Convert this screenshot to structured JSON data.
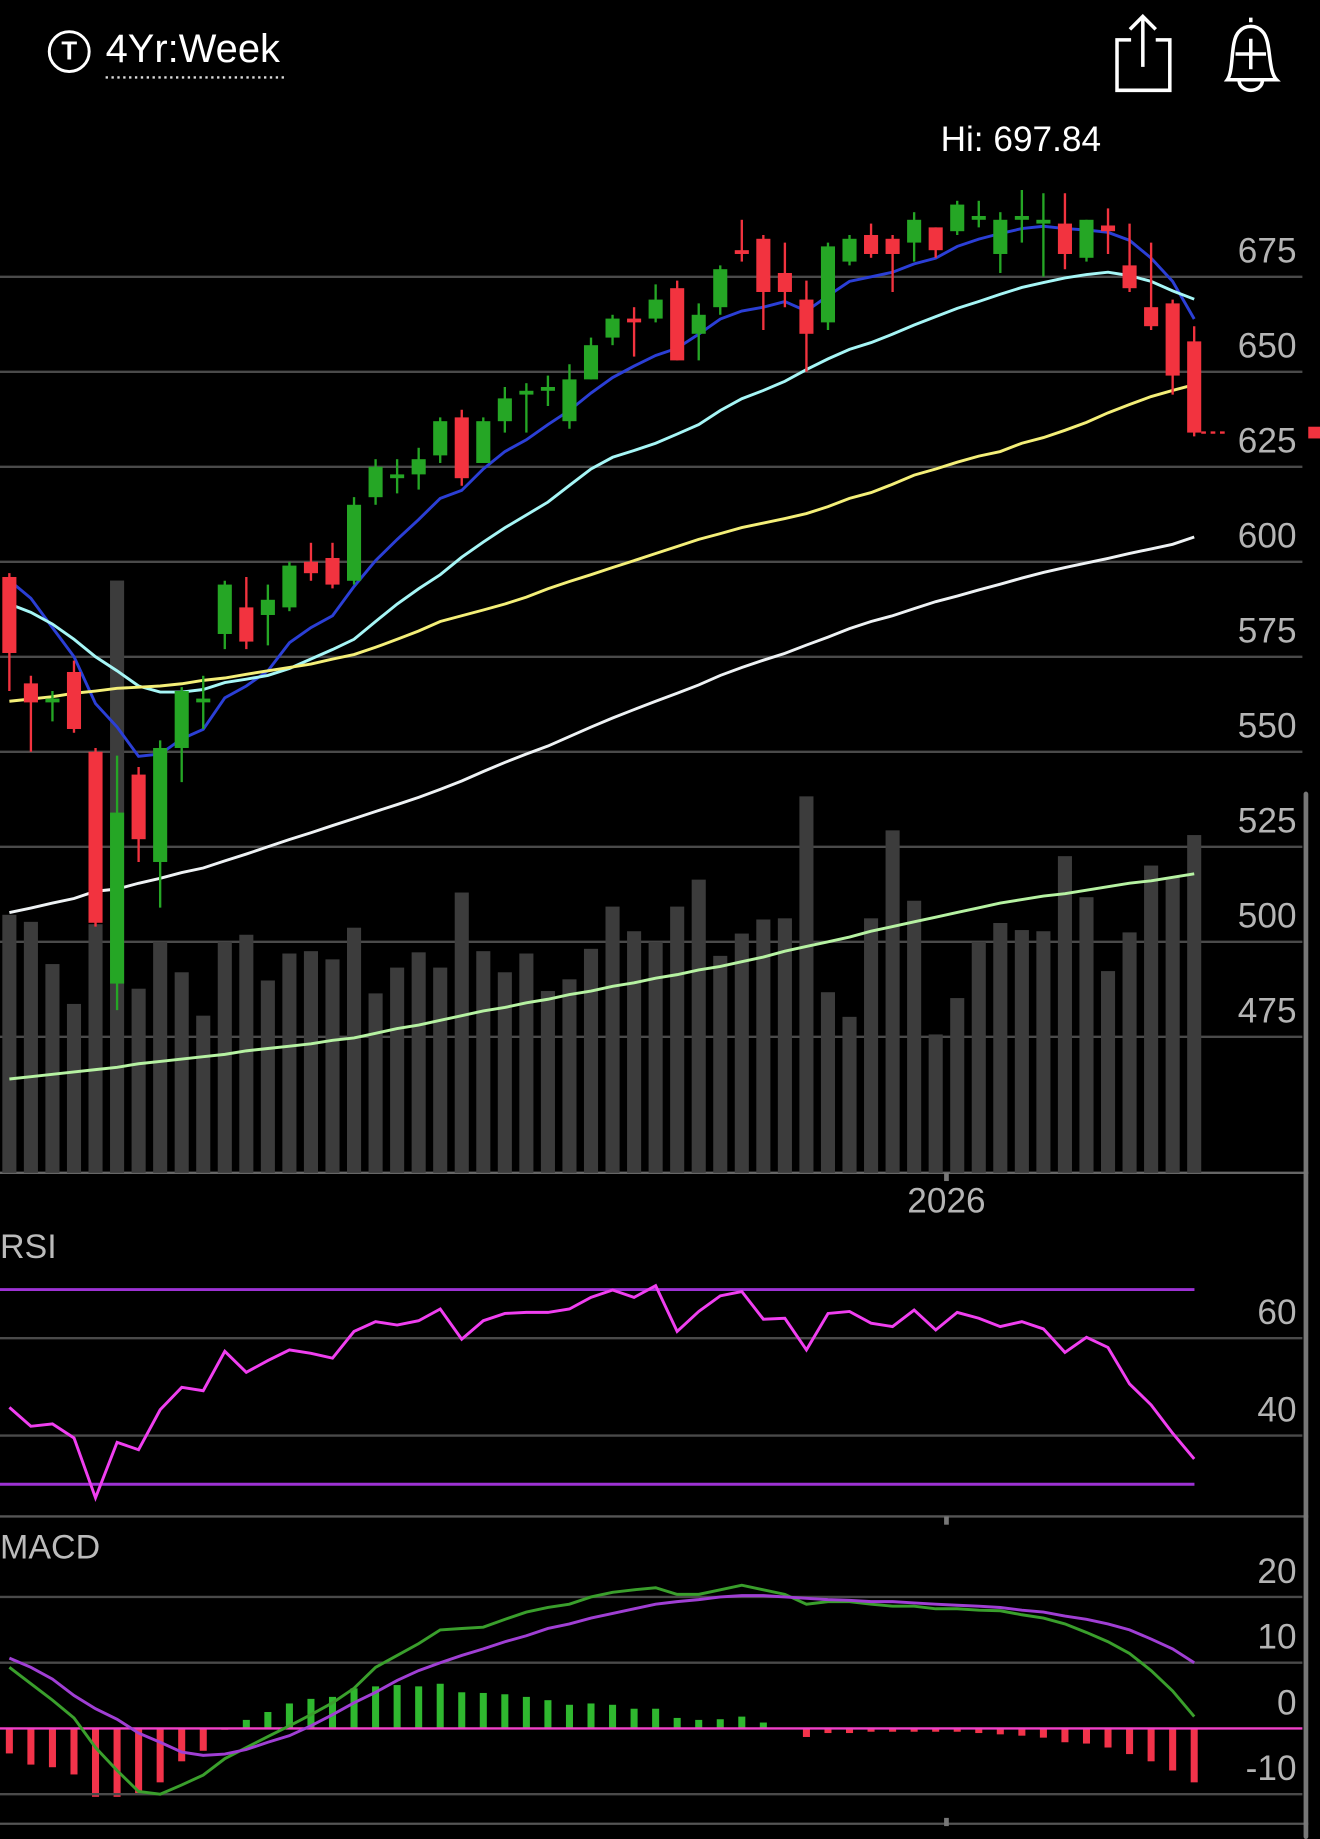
{
  "header": {
    "icon_letter": "T",
    "title": "4Yr:Week"
  },
  "chart_data": [
    {
      "type": "candlestick",
      "annotation": "Hi: 697.84",
      "categories": [
        null,
        null,
        null,
        null,
        null,
        null,
        null,
        null,
        null,
        null,
        null,
        null,
        null,
        null,
        null,
        null,
        null,
        null,
        null,
        null,
        null,
        null,
        null,
        null,
        null,
        null,
        null,
        null,
        null,
        null,
        null,
        null,
        null,
        null,
        null,
        null,
        null,
        null,
        null,
        null,
        null,
        null,
        null,
        null,
        null,
        null,
        null,
        null,
        null,
        null,
        null,
        null,
        null,
        null,
        null,
        null
      ],
      "open": [
        596,
        568,
        563,
        571,
        550,
        489,
        544,
        521,
        551,
        563,
        581,
        588,
        586,
        588,
        600,
        601,
        595,
        617,
        622,
        623,
        628,
        638,
        626,
        637,
        644,
        645,
        637,
        648,
        659,
        664,
        664,
        672,
        660,
        667,
        682,
        685,
        676,
        669,
        663,
        679,
        686,
        685,
        684,
        688,
        687,
        690,
        681,
        690,
        689,
        689,
        680,
        688.5,
        678,
        667,
        668,
        658
      ],
      "high": [
        597,
        570,
        566,
        574,
        551,
        549,
        546,
        553,
        567,
        570,
        595,
        596,
        594,
        600,
        605,
        605,
        617,
        627,
        627,
        630,
        638,
        640,
        638,
        646,
        647,
        649,
        652,
        659,
        665,
        667,
        673,
        674,
        668,
        678,
        690,
        686,
        684,
        674,
        684,
        686,
        689,
        686,
        692,
        688,
        695,
        695,
        692,
        697.84,
        697,
        697,
        690,
        693,
        689,
        684,
        669,
        662
      ],
      "low": [
        566,
        550,
        558,
        555,
        504,
        482,
        521,
        509,
        542,
        556,
        577,
        577,
        578,
        587,
        595,
        593,
        594,
        615,
        618,
        619,
        626,
        620,
        626,
        634,
        634,
        641,
        635,
        648,
        657,
        654,
        663,
        653,
        653,
        665,
        679,
        661,
        667,
        650,
        661,
        678,
        680,
        671,
        679,
        680,
        686,
        688,
        676,
        684,
        675,
        677,
        679,
        681,
        671,
        661,
        644,
        633
      ],
      "close": [
        576,
        563,
        564,
        556,
        505,
        534,
        527,
        551,
        566,
        564,
        594,
        579,
        590,
        599,
        597,
        594,
        615,
        625,
        623,
        627,
        637,
        622,
        637,
        643,
        645,
        646,
        648,
        657,
        664,
        663,
        669,
        653,
        665,
        677,
        681,
        671,
        671,
        660,
        683,
        685,
        681,
        681,
        690,
        682,
        694,
        691,
        690,
        691,
        690,
        681,
        690,
        687,
        672,
        662,
        649,
        634
      ],
      "colors": {
        "up": "#25a625",
        "down": "#f2333f"
      },
      "series": [
        {
          "color": "#2b3fd6",
          "values": [
            595.1,
            590.4,
            582.7,
            575,
            562.7,
            556.5,
            548.8,
            549.4,
            553.4,
            555.9,
            564.2,
            567.3,
            571.3,
            578.7,
            582.7,
            585.8,
            593.5,
            600.3,
            605.9,
            611.1,
            616.7,
            618.8,
            624.4,
            629,
            632.1,
            636.1,
            639.8,
            644.4,
            648.5,
            651.5,
            654.3,
            656.2,
            659.9,
            663.9,
            666,
            667,
            668.5,
            666,
            670,
            673.8,
            675,
            676.2,
            678.4,
            679.9,
            683,
            684.9,
            686.4,
            687.7,
            688.3,
            687.7,
            687.3,
            686.7,
            684.6,
            679.9,
            673.8,
            663.9
          ]
        },
        {
          "color": "#a6f6f6",
          "values": [
            588.9,
            586.7,
            583.6,
            579.6,
            575,
            571.3,
            567.3,
            565.7,
            565.7,
            566.4,
            568.2,
            569.1,
            570.1,
            571.9,
            574.4,
            576.9,
            579.6,
            584.3,
            588.9,
            592.9,
            596.6,
            601.2,
            605.2,
            608.95,
            612.3,
            615.7,
            620.1,
            624.4,
            627.5,
            629.3,
            631.2,
            633.6,
            636.1,
            639.8,
            642.9,
            645.1,
            647.5,
            650.6,
            653.4,
            655.9,
            657.7,
            659.9,
            662.3,
            664.5,
            666.7,
            668.5,
            670.4,
            672.2,
            673.5,
            674.7,
            675.6,
            676.2,
            675.3,
            673.8,
            671.3,
            669.1
          ]
        },
        {
          "color": "#f4ef78",
          "values": [
            563.3,
            563.9,
            564.5,
            565.4,
            566,
            566.7,
            567,
            567.3,
            567.9,
            568.8,
            569.4,
            570.4,
            571.3,
            572.2,
            573.1,
            574.4,
            575.6,
            577.5,
            579.6,
            581.8,
            584.3,
            585.8,
            587.3,
            588.9,
            590.7,
            592.9,
            594.8,
            596.6,
            598.5,
            600.3,
            602.2,
            604,
            605.9,
            607.4,
            609,
            610.2,
            611.4,
            612.7,
            614.5,
            616.7,
            618.2,
            620.4,
            622.8,
            624.4,
            626.2,
            627.8,
            629,
            631.2,
            632.7,
            634.6,
            636.7,
            639.2,
            641.4,
            643.5,
            645.1,
            646.6
          ]
        },
        {
          "color": "#eef2f4",
          "values": [
            507.7,
            508.9,
            510.2,
            511.4,
            513.3,
            513.9,
            515.4,
            516.7,
            518.2,
            519.4,
            521.3,
            523.1,
            525,
            526.9,
            528.7,
            530.6,
            532.4,
            534.3,
            536.1,
            538,
            540.1,
            542.3,
            544.8,
            547.2,
            549.4,
            551.5,
            554,
            556.5,
            558.9,
            561.1,
            563.3,
            565.4,
            567.6,
            570.1,
            572.2,
            574.1,
            575.9,
            578.1,
            580.2,
            582.4,
            584.3,
            585.8,
            587.7,
            589.5,
            591,
            592.6,
            594.1,
            595.7,
            597.2,
            598.5,
            599.7,
            600.9,
            602.2,
            603.4,
            604.6,
            606.5
          ]
        }
      ],
      "volume": {
        "color": "#3c3c3c",
        "ylim": [
          0,
          600
        ],
        "values": [
          220,
          214,
          178,
          144,
          212,
          505,
          157,
          197,
          171,
          134,
          197,
          203,
          164,
          187,
          189,
          182,
          209,
          153,
          175,
          188,
          175,
          239,
          189,
          171,
          187,
          155,
          165,
          191,
          227,
          206,
          197,
          227,
          250,
          185,
          204,
          216,
          217,
          321,
          154,
          133,
          217,
          292,
          232,
          118,
          149,
          197,
          213,
          207,
          206,
          270,
          235,
          172,
          205,
          262,
          252,
          288
        ],
        "average": {
          "color": "#b6f2a2",
          "values": [
            80,
            82,
            84,
            86,
            88,
            90,
            93,
            95,
            97,
            99,
            101,
            104,
            106,
            108,
            110,
            113,
            115,
            119,
            123,
            126,
            130,
            134,
            138,
            141,
            145,
            148,
            152,
            155,
            159,
            162,
            166,
            169,
            173,
            176,
            180,
            184,
            189,
            193,
            197,
            201,
            206,
            210,
            214,
            218,
            222,
            226,
            230,
            233,
            236,
            238,
            241,
            244,
            247,
            249,
            252,
            255
          ]
        }
      },
      "ylim": [
        440,
        705
      ],
      "yticks": [
        475,
        500,
        525,
        550,
        575,
        600,
        625,
        650,
        675
      ],
      "xticks": [
        {
          "value": 43.5,
          "label": "2026"
        }
      ],
      "grid": true
    },
    {
      "type": "line",
      "title": "RSI",
      "categories": [
        null,
        null,
        null,
        null,
        null,
        null,
        null,
        null,
        null,
        null,
        null,
        null,
        null,
        null,
        null,
        null,
        null,
        null,
        null,
        null,
        null,
        null,
        null,
        null,
        null,
        null,
        null,
        null,
        null,
        null,
        null,
        null,
        null,
        null,
        null,
        null,
        null,
        null,
        null,
        null,
        null,
        null,
        null,
        null,
        null,
        null,
        null,
        null,
        null,
        null,
        null,
        null,
        null,
        null,
        null,
        null
      ],
      "series": [
        {
          "color": "#f03ff0",
          "values": [
            45.8,
            41.9,
            42.4,
            39.5,
            27.2,
            38.6,
            37.1,
            45.3,
            49.9,
            49.2,
            57.3,
            53,
            55.4,
            57.6,
            56.9,
            55.9,
            61.4,
            63.4,
            62.7,
            63.6,
            66,
            59.8,
            63.6,
            65.1,
            65.3,
            65.3,
            66,
            68.4,
            69.9,
            68.4,
            70.8,
            61.4,
            65.5,
            68.7,
            69.6,
            63.9,
            64.1,
            57.6,
            65.1,
            65.5,
            63.1,
            62.4,
            65.8,
            61.7,
            65.3,
            64.1,
            62.4,
            63.4,
            61.9,
            57.1,
            60.2,
            58.1,
            50.6,
            46.3,
            40.5,
            35.2
          ]
        }
      ],
      "levels": [
        30,
        70
      ],
      "level_color": "#9d32d4",
      "ylim": [
        23.5,
        83.5
      ],
      "yticks": [
        40,
        60
      ],
      "grid": true
    },
    {
      "type": "macd",
      "title": "MACD",
      "categories": [
        null,
        null,
        null,
        null,
        null,
        null,
        null,
        null,
        null,
        null,
        null,
        null,
        null,
        null,
        null,
        null,
        null,
        null,
        null,
        null,
        null,
        null,
        null,
        null,
        null,
        null,
        null,
        null,
        null,
        null,
        null,
        null,
        null,
        null,
        null,
        null,
        null,
        null,
        null,
        null,
        null,
        null,
        null,
        null,
        null,
        null,
        null,
        null,
        null,
        null,
        null,
        null,
        null,
        null,
        null,
        null
      ],
      "series": [
        {
          "color": "#3a9f2c",
          "values": [
            9.3,
            6.8,
            4.3,
            1.6,
            -2.9,
            -6.4,
            -9.6,
            -10,
            -8.6,
            -7.1,
            -4.6,
            -2.9,
            -1.25,
            0.4,
            2.1,
            3.9,
            6.1,
            9.3,
            11.1,
            12.9,
            15,
            15.2,
            15.4,
            16.6,
            17.7,
            18.4,
            18.9,
            20,
            20.7,
            21.1,
            21.4,
            20.4,
            20.4,
            21.1,
            21.8,
            21.1,
            20.4,
            18.9,
            19.3,
            19.3,
            18.9,
            18.6,
            18.6,
            18.2,
            18.2,
            18,
            17.9,
            17.3,
            16.8,
            15.9,
            14.6,
            13.2,
            11.4,
            8.8,
            5.7,
            1.8
          ]
        },
        {
          "color": "#a03fd4",
          "values": [
            10.7,
            9.3,
            7.5,
            5,
            3,
            1.4,
            -0.7,
            -2.1,
            -3.6,
            -4.1,
            -3.9,
            -3.2,
            -2.1,
            -1.1,
            0.4,
            2.1,
            3.9,
            5.5,
            7.3,
            8.8,
            10,
            11.1,
            12.1,
            13.2,
            14.1,
            15.2,
            15.9,
            16.8,
            17.5,
            18.2,
            18.9,
            19.3,
            19.6,
            20,
            20.2,
            20.2,
            20,
            19.8,
            19.6,
            19.5,
            19.3,
            19.3,
            19.1,
            18.9,
            18.75,
            18.6,
            18.4,
            18,
            17.7,
            17.1,
            16.6,
            15.9,
            15,
            13.6,
            12.1,
            10
          ]
        }
      ],
      "histogram": {
        "up_color": "#2fb82f",
        "down_color": "#f2334a",
        "values": [
          -3.8,
          -5.5,
          -5.9,
          -7,
          -10.4,
          -10.4,
          -10,
          -8.2,
          -5,
          -3.4,
          -0.2,
          1.3,
          2.5,
          3.8,
          4.5,
          4.8,
          6.1,
          6.4,
          6.6,
          6.4,
          6.8,
          5.5,
          5.4,
          5.2,
          4.8,
          4.3,
          3.6,
          3.8,
          3.6,
          3,
          3,
          1.6,
          1.3,
          1.4,
          1.8,
          0.9,
          0,
          -1.3,
          -0.7,
          -0.7,
          -0.5,
          -0.5,
          -0.5,
          -0.5,
          -0.5,
          -0.7,
          -0.9,
          -1.1,
          -1.4,
          -2.1,
          -2.3,
          -2.9,
          -3.9,
          -5,
          -6.4,
          -8.2
        ]
      },
      "zero_line_color": "#f040c8",
      "ylim": [
        -14.5,
        31
      ],
      "yticks": [
        -10,
        0,
        10,
        20
      ],
      "grid": true
    }
  ]
}
